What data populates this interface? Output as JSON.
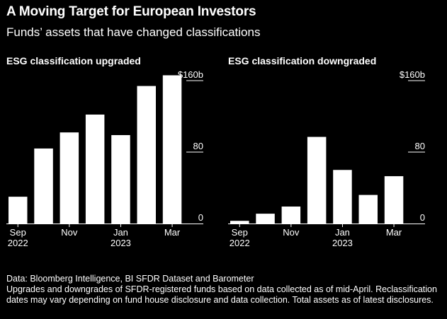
{
  "header": {
    "title": "A Moving Target for European Investors",
    "subtitle": "Funds’ assets that have changed classifications"
  },
  "chart_data": [
    {
      "type": "bar",
      "title": "ESG classification upgraded",
      "unit": "$ billions",
      "categories": [
        "Sep 2022",
        "Oct 2022",
        "Nov 2022",
        "Dec 2022",
        "Jan 2023",
        "Feb 2023",
        "Mar 2023"
      ],
      "values": [
        30,
        84,
        102,
        122,
        99,
        154,
        166
      ],
      "ylim": [
        0,
        160
      ],
      "yticks": [
        {
          "value": 160,
          "label": "$160b"
        },
        {
          "value": 80,
          "label": "80"
        },
        {
          "value": 0,
          "label": "0"
        }
      ],
      "xticks": [
        {
          "index": 0,
          "line1": "Sep",
          "line2": "2022"
        },
        {
          "index": 2,
          "line1": "Nov",
          "line2": ""
        },
        {
          "index": 4,
          "line1": "Jan",
          "line2": "2023"
        },
        {
          "index": 6,
          "line1": "Mar",
          "line2": ""
        }
      ],
      "grid": false,
      "color": "#ffffff"
    },
    {
      "type": "bar",
      "title": "ESG classification downgraded",
      "unit": "$ billions",
      "categories": [
        "Sep 2022",
        "Oct 2022",
        "Nov 2022",
        "Dec 2022",
        "Jan 2023",
        "Feb 2023",
        "Mar 2023"
      ],
      "values": [
        3,
        11,
        19,
        97,
        60,
        32,
        53
      ],
      "ylim": [
        0,
        160
      ],
      "yticks": [
        {
          "value": 160,
          "label": "$160b"
        },
        {
          "value": 80,
          "label": "80"
        },
        {
          "value": 0,
          "label": "0"
        }
      ],
      "xticks": [
        {
          "index": 0,
          "line1": "Sep",
          "line2": "2022"
        },
        {
          "index": 2,
          "line1": "Nov",
          "line2": ""
        },
        {
          "index": 4,
          "line1": "Jan",
          "line2": "2023"
        },
        {
          "index": 6,
          "line1": "Mar",
          "line2": ""
        }
      ],
      "grid": false,
      "color": "#ffffff"
    }
  ],
  "footer": {
    "source": "Data: Bloomberg Intelligence, BI SFDR Dataset and Barometer",
    "note": "Upgrades and downgrades of SFDR-registered funds based on data collected as of mid-April. Reclassification dates may vary depending on fund house disclosure and data collection. Total assets as of latest disclosures."
  }
}
